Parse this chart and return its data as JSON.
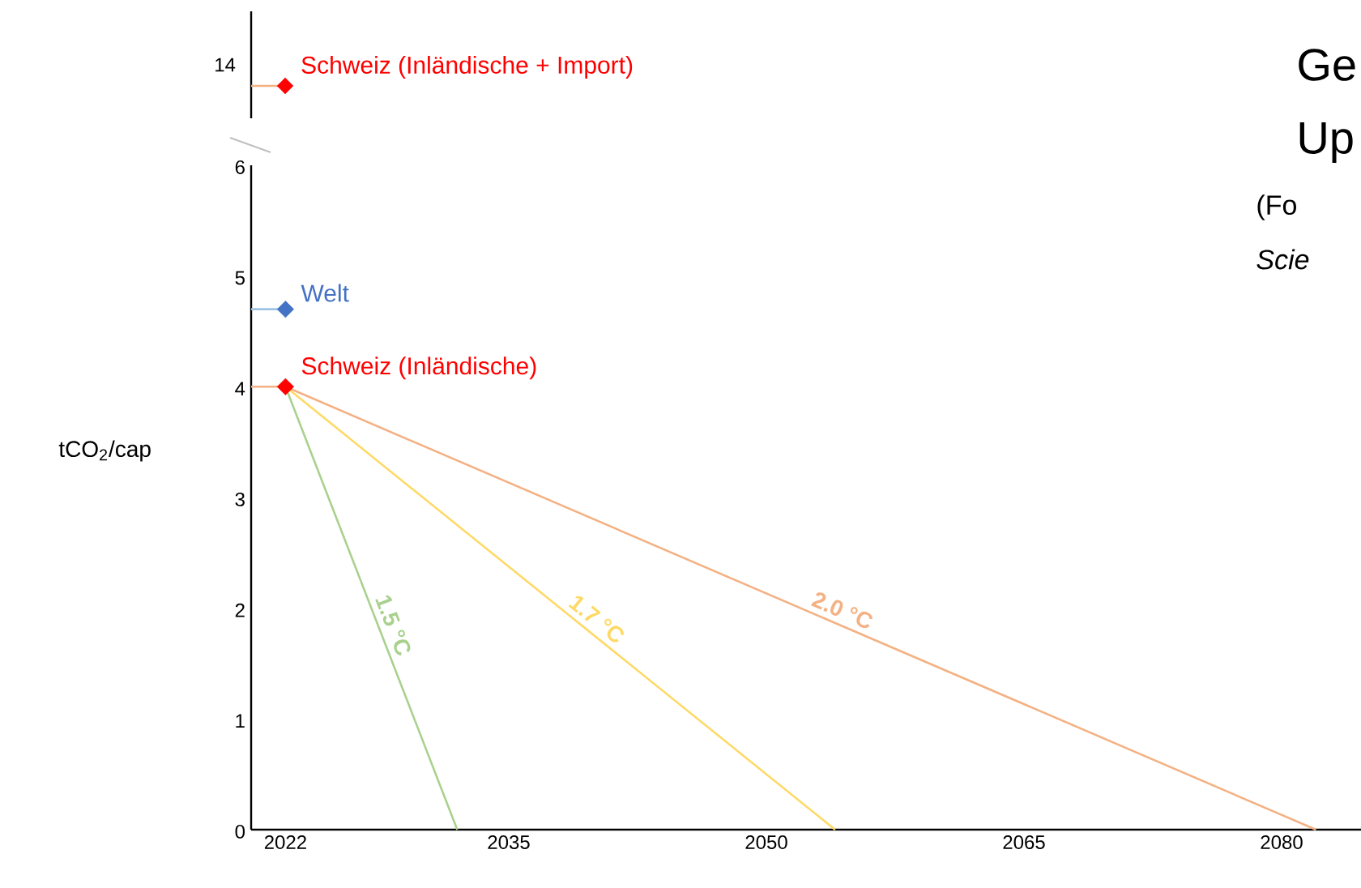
{
  "chart_data": [
    {
      "type": "other",
      "annotations": [
        "14",
        "Schweiz (Inländische + Import)"
      ],
      "colors": [
        "#000000",
        "#ff0000"
      ]
    },
    {
      "type": "line",
      "xlim": [
        2020,
        2085
      ],
      "ylim": [
        0,
        6
      ],
      "yticks": [
        0,
        1,
        2,
        3,
        4,
        5,
        6
      ],
      "xticks": [
        2022,
        2035,
        2050,
        2065,
        2080
      ],
      "ylabel": "tCO$_{2}$/cap",
      "annotations": [
        "Ge",
        "Up",
        "(Fo",
        "Scie"
      ],
      "series": [
        {
          "x": [
            2020,
            2022
          ],
          "values": [
            4.7,
            4.7
          ],
          "color": "#9dc3e6"
        },
        {
          "name": "1.5 °C",
          "x": [
            2022,
            2032
          ],
          "values": [
            4.0,
            0
          ],
          "color": "#a9d18e"
        },
        {
          "name": "1.7 °C",
          "x": [
            2022,
            2054
          ],
          "values": [
            4.0,
            0
          ],
          "color": "#ffd966"
        },
        {
          "name": "2.0 °C",
          "x": [
            2020,
            2022,
            2082
          ],
          "values": [
            4.0,
            4.0,
            0
          ],
          "color": "#f4b183"
        },
        {
          "type": "scatter",
          "name": "Welt",
          "x": [
            2022
          ],
          "values": [
            4.7
          ],
          "color": "#4472c4",
          "marker": "diamond"
        },
        {
          "type": "scatter",
          "name": "Schweiz (Inländische)",
          "x": [
            2022
          ],
          "values": [
            4.0
          ],
          "color": "#ff0000",
          "marker": "diamond"
        }
      ]
    }
  ]
}
